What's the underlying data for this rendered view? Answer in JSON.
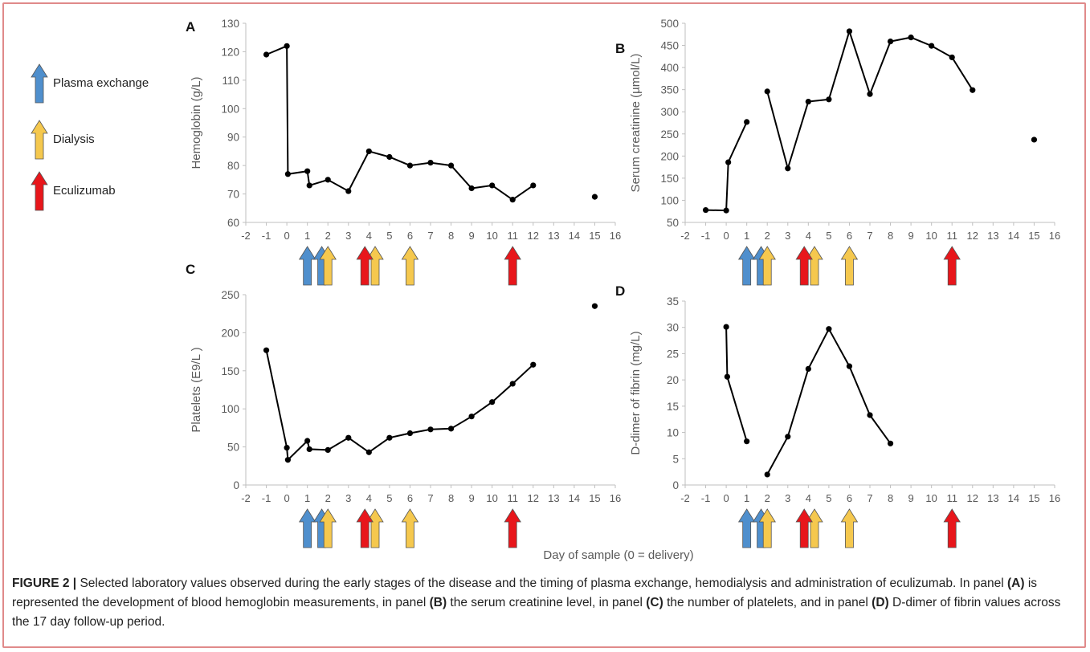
{
  "legend": {
    "items": [
      {
        "label": "Plasma exchange",
        "color": "#4f8fcd",
        "icon": "blue-up-arrow-icon"
      },
      {
        "label": "Dialysis",
        "color": "#f5c84e",
        "icon": "yellow-up-arrow-icon"
      },
      {
        "label": "Eculizumab",
        "color": "#e8161b",
        "icon": "red-up-arrow-icon"
      }
    ]
  },
  "x_axis_title": "Day of sample (0 = delivery)",
  "treatments": {
    "plasma_exchange_days": [
      1,
      1.7
    ],
    "dialysis_days": [
      2,
      4.3,
      6
    ],
    "eculizumab_days": [
      3.8,
      11
    ]
  },
  "chart_data": [
    {
      "panel": "A",
      "type": "line",
      "ylabel": "Hemoglobin (g/L)",
      "ylim": [
        60,
        130
      ],
      "yticks": [
        60,
        70,
        80,
        90,
        100,
        110,
        120,
        130
      ],
      "xlim": [
        -2,
        16
      ],
      "xticks": [
        -2,
        -1,
        0,
        1,
        2,
        3,
        4,
        5,
        6,
        7,
        8,
        9,
        10,
        11,
        12,
        13,
        14,
        15,
        16
      ],
      "x": [
        -1,
        0,
        0.05,
        1,
        1.1,
        2,
        3,
        4,
        5,
        6,
        7,
        8,
        9,
        10,
        11,
        12
      ],
      "y": [
        119,
        122,
        77,
        78,
        73,
        75,
        71,
        85,
        83,
        80,
        81,
        80,
        72,
        73,
        68,
        73
      ],
      "isolated_points": [
        [
          15,
          69
        ]
      ]
    },
    {
      "panel": "B",
      "type": "line",
      "ylabel": "Serum creatinine (µmol/L)",
      "ylim": [
        50,
        500
      ],
      "yticks": [
        50,
        100,
        150,
        200,
        250,
        300,
        350,
        400,
        450,
        500
      ],
      "xlim": [
        -2,
        16
      ],
      "xticks": [
        -2,
        -1,
        0,
        1,
        2,
        3,
        4,
        5,
        6,
        7,
        8,
        9,
        10,
        11,
        12,
        13,
        14,
        15,
        16
      ],
      "segments": [
        {
          "x": [
            -1,
            0,
            0.1,
            1
          ],
          "y": [
            78,
            77,
            186,
            277
          ]
        },
        {
          "x": [
            2,
            3,
            4,
            5,
            6,
            7,
            8,
            9,
            10,
            11,
            12
          ],
          "y": [
            346,
            172,
            323,
            328,
            482,
            340,
            459,
            468,
            449,
            423,
            349
          ]
        }
      ],
      "isolated_points": [
        [
          15,
          237
        ]
      ]
    },
    {
      "panel": "C",
      "type": "line",
      "ylabel": "Platelets (E9/L )",
      "ylim": [
        0,
        250
      ],
      "yticks": [
        0,
        50,
        100,
        150,
        200,
        250
      ],
      "xlim": [
        -2,
        16
      ],
      "xticks": [
        -2,
        -1,
        0,
        1,
        2,
        3,
        4,
        5,
        6,
        7,
        8,
        9,
        10,
        11,
        12,
        13,
        14,
        15,
        16
      ],
      "x": [
        -1,
        0,
        0.05,
        1,
        1.1,
        2,
        3,
        4,
        5,
        6,
        7,
        8,
        9,
        10,
        11,
        12
      ],
      "y": [
        177,
        49,
        33,
        58,
        47,
        46,
        62,
        43,
        62,
        68,
        73,
        74,
        90,
        109,
        133,
        158
      ],
      "isolated_points": [
        [
          15,
          235
        ]
      ]
    },
    {
      "panel": "D",
      "type": "line",
      "ylabel": "D-dimer of fibrin (mg/L)",
      "ylim": [
        0,
        35
      ],
      "yticks": [
        0,
        5,
        10,
        15,
        20,
        25,
        30,
        35
      ],
      "xlim": [
        -2,
        16
      ],
      "xticks": [
        -2,
        -1,
        0,
        1,
        2,
        3,
        4,
        5,
        6,
        7,
        8,
        9,
        10,
        11,
        12,
        13,
        14,
        15,
        16
      ],
      "segments": [
        {
          "x": [
            0,
            0.05,
            1
          ],
          "y": [
            30.1,
            20.6,
            8.3
          ]
        },
        {
          "x": [
            2,
            3,
            4,
            5,
            6,
            7,
            8
          ],
          "y": [
            2,
            9.2,
            22.1,
            29.7,
            22.6,
            13.3,
            7.9
          ]
        }
      ],
      "isolated_points": []
    }
  ],
  "caption": {
    "label": "FIGURE 2 |",
    "parts": [
      {
        "t": " Selected laboratory values observed during the early stages of the disease and the timing of plasma exchange, hemodialysis and administration of eculizumab. In panel ",
        "b": false
      },
      {
        "t": "(A)",
        "b": true
      },
      {
        "t": " is represented the development of blood hemoglobin measurements, in panel ",
        "b": false
      },
      {
        "t": "(B)",
        "b": true
      },
      {
        "t": " the serum creatinine level, in panel ",
        "b": false
      },
      {
        "t": "(C)",
        "b": true
      },
      {
        "t": " the number of platelets, and in panel ",
        "b": false
      },
      {
        "t": "(D)",
        "b": true
      },
      {
        "t": " D-dimer of fibrin values across the 17 day follow-up period.",
        "b": false
      }
    ]
  }
}
